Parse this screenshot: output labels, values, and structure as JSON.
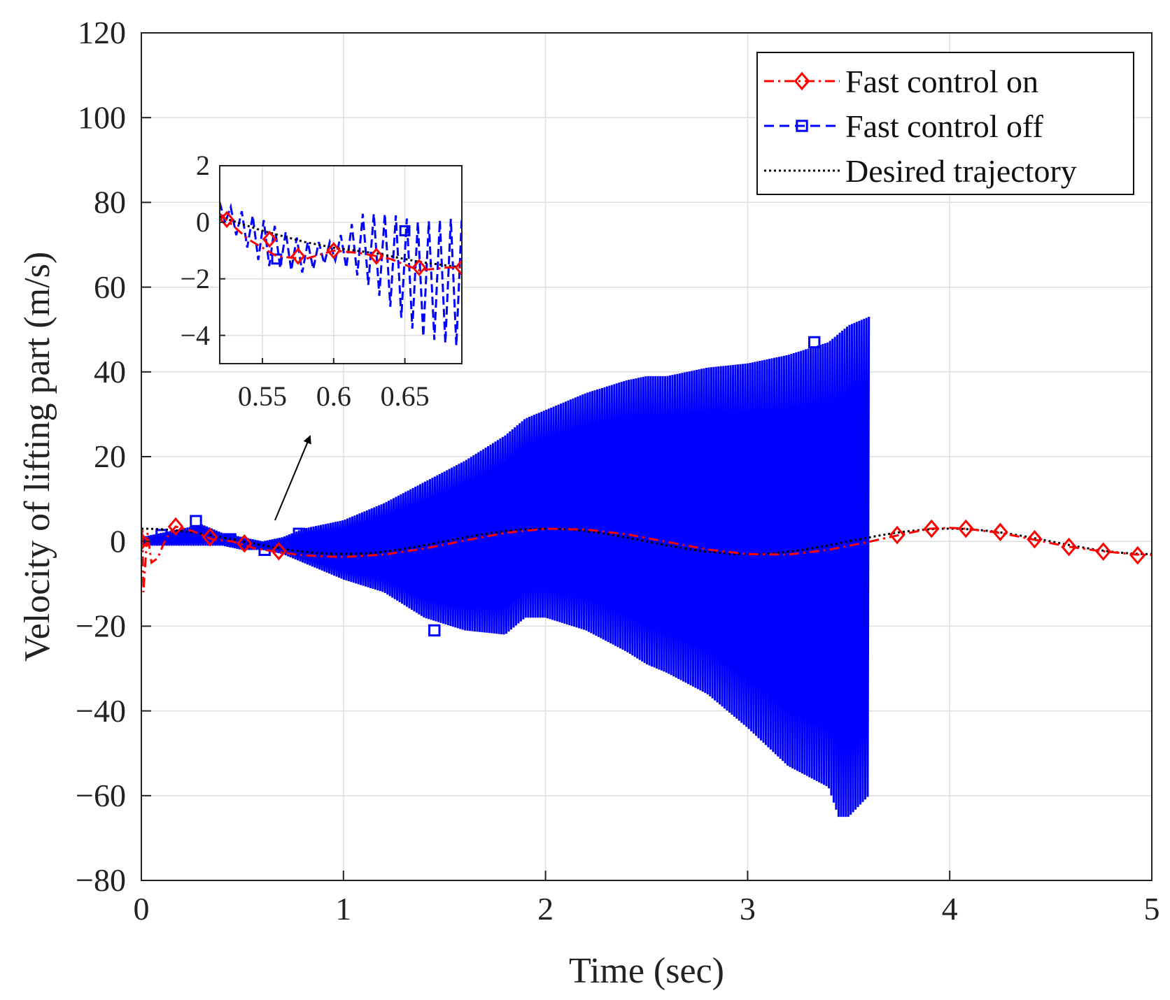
{
  "chart_data": {
    "type": "line",
    "title": "",
    "xlabel": "Time (sec)",
    "ylabel": "Velocity of lifting part (m/s)",
    "xlim": [
      0,
      5
    ],
    "ylim": [
      -80,
      120
    ],
    "grid": true,
    "xticks": [
      0,
      1,
      2,
      3,
      4,
      5
    ],
    "xtick_labels": [
      "0",
      "1",
      "2",
      "3",
      "4",
      "5"
    ],
    "yticks": [
      -80,
      -60,
      -40,
      -20,
      0,
      20,
      40,
      60,
      80,
      100,
      120
    ],
    "ytick_labels": [
      "−80",
      "−60",
      "−40",
      "−20",
      "0",
      "20",
      "40",
      "60",
      "80",
      "100",
      "120"
    ],
    "legend_position": "top-right",
    "series": [
      {
        "name": "Fast control on",
        "color": "#ff0000",
        "linestyle": "dash-dot",
        "marker": "diamond",
        "x": [
          0.0,
          0.005,
          0.01,
          0.02,
          0.03,
          0.05,
          0.08,
          0.12,
          0.17,
          0.25,
          0.35,
          0.45,
          0.55,
          0.65,
          0.8,
          1.0,
          1.2,
          1.4,
          1.6,
          1.8,
          2.0,
          2.2,
          2.4,
          2.6,
          2.8,
          3.0,
          3.2,
          3.4,
          3.6,
          3.75,
          3.9,
          4.0,
          4.08,
          4.25,
          4.42,
          4.58,
          4.75,
          4.92,
          5.0
        ],
        "values": [
          0,
          3,
          -12,
          -5,
          2,
          -5,
          -4,
          0.5,
          3.5,
          2.5,
          0.5,
          0,
          -1.5,
          -2.3,
          -3.3,
          -3.7,
          -3.1,
          -1.7,
          0.2,
          2.0,
          3.0,
          2.8,
          1.7,
          -0.1,
          -1.9,
          -3.0,
          -3.1,
          -2.0,
          -0.1,
          1.5,
          3.0,
          3.2,
          3.0,
          2.0,
          0.4,
          -1.2,
          -2.3,
          -3.1,
          -3.2
        ],
        "marker_x": [
          0.0,
          0.17,
          0.34,
          0.51,
          0.68,
          3.74,
          3.91,
          4.08,
          4.25,
          4.42,
          4.59,
          4.76,
          4.93
        ],
        "marker_values": [
          0,
          3.5,
          1.0,
          -0.5,
          -2.3,
          1.5,
          3.0,
          3.0,
          2.2,
          0.5,
          -1.3,
          -2.4,
          -3.3
        ]
      },
      {
        "name": "Fast control off",
        "color": "#0000ff",
        "linestyle": "dashed",
        "marker": "square",
        "x": [
          0.0,
          0.1,
          0.2,
          0.3,
          0.4,
          0.5,
          0.6,
          0.7,
          0.8,
          0.9,
          1.0,
          1.2,
          1.4,
          1.6,
          1.8,
          1.85,
          1.9,
          2.0,
          2.2,
          2.4,
          2.5,
          2.6,
          2.8,
          3.0,
          3.2,
          3.4,
          3.45,
          3.5,
          3.6
        ],
        "upper": [
          1,
          2,
          3,
          4,
          2,
          1,
          0,
          1,
          3,
          4,
          5,
          9,
          14,
          19,
          25,
          27,
          29,
          31,
          35,
          38,
          39,
          39,
          41,
          42,
          44,
          47,
          49,
          51,
          53
        ],
        "lower": [
          -1,
          -1,
          -1,
          -1,
          -1,
          -2,
          -2,
          -3,
          -5,
          -7,
          -9,
          -12,
          -18,
          -21,
          -22,
          -20,
          -18,
          -18,
          -21,
          -26,
          -29,
          -31,
          -36,
          -44,
          -53,
          -58,
          -65,
          -65,
          -60
        ],
        "marker_x": [
          0.1,
          0.27,
          0.44,
          0.61,
          0.78,
          1.45,
          3.33
        ],
        "marker_values": [
          1.5,
          4.8,
          0.5,
          -2.0,
          1.8,
          -21,
          47
        ]
      },
      {
        "name": "Desired trajectory",
        "color": "#000000",
        "linestyle": "dotted",
        "marker": "none",
        "formula": "3*cos(pi*t)",
        "x": [
          0,
          0.5,
          1,
          1.5,
          2,
          2.5,
          3,
          3.5,
          4,
          4.5,
          5
        ],
        "values": [
          3,
          0,
          -3,
          0,
          3,
          0,
          -3,
          0,
          3,
          0,
          -3
        ]
      }
    ],
    "annotation": "arrow from the 0.55–0.7 s region to the zoomed inset",
    "inset": {
      "xlim": [
        0.52,
        0.69
      ],
      "ylim": [
        -5,
        2
      ],
      "xticks": [
        0.55,
        0.6,
        0.65
      ],
      "xtick_labels": [
        "0.55",
        "0.6",
        "0.65"
      ],
      "yticks": [
        2,
        0,
        -2,
        -4
      ],
      "ytick_labels": [
        "2",
        "0",
        "−2",
        "−4"
      ],
      "series": [
        {
          "name": "Fast control on",
          "x": [
            0.52,
            0.54,
            0.56,
            0.58,
            0.6,
            0.62,
            0.64,
            0.66,
            0.68,
            0.69
          ],
          "values": [
            0.3,
            -0.6,
            -1.2,
            -1.3,
            -1.0,
            -1.1,
            -1.3,
            -1.7,
            -1.6,
            -1.6
          ],
          "marker_x": [
            0.525,
            0.555,
            0.575,
            0.6,
            0.63,
            0.66,
            0.69
          ],
          "marker_values": [
            0.1,
            -0.6,
            -1.2,
            -1.0,
            -1.2,
            -1.6,
            -1.6
          ]
        },
        {
          "name": "Fast control off",
          "x": [
            0.52,
            0.55,
            0.58,
            0.6,
            0.62,
            0.64,
            0.66,
            0.68,
            0.69
          ],
          "upper": [
            0.7,
            0.1,
            -0.7,
            -0.7,
            0.3,
            0.3,
            0.0,
            0.1,
            0.2
          ],
          "lower": [
            0.2,
            -1.5,
            -1.8,
            -1.3,
            -2.0,
            -3.0,
            -4.0,
            -4.3,
            -4.4
          ],
          "marker_x": [
            0.56,
            0.65
          ],
          "marker_values": [
            -1.3,
            -0.3
          ]
        },
        {
          "name": "Desired trajectory",
          "x": [
            0.52,
            0.55,
            0.58,
            0.6,
            0.63,
            0.66,
            0.69
          ],
          "values": [
            0.2,
            -0.3,
            -0.7,
            -0.9,
            -1.1,
            -1.4,
            -1.6
          ]
        }
      ]
    }
  }
}
